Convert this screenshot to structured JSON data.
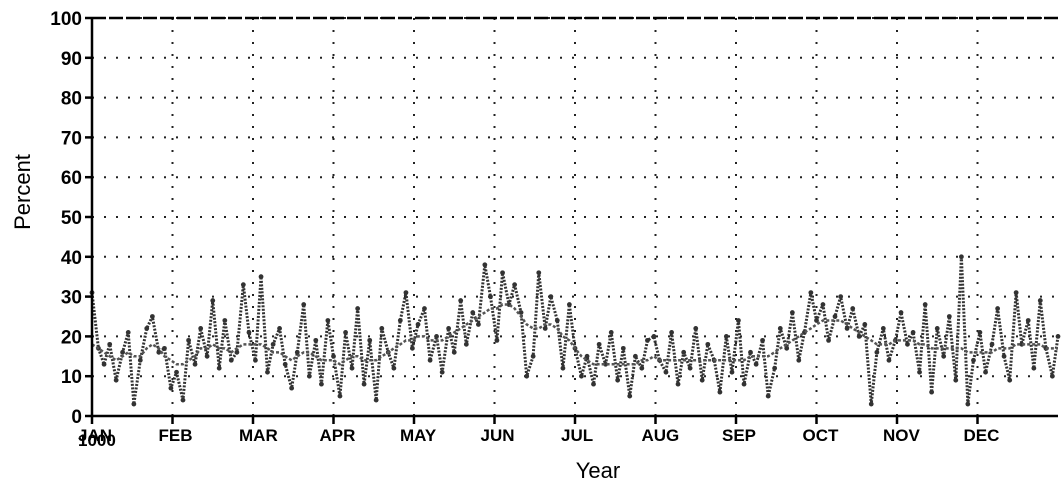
{
  "chart_data": {
    "type": "line",
    "title": "",
    "xlabel": "Year",
    "ylabel": "Percent",
    "ylim": [
      0,
      100
    ],
    "yticks": [
      0,
      10,
      20,
      30,
      40,
      50,
      60,
      70,
      80,
      90,
      100
    ],
    "ytick_labels": [
      "0",
      "10",
      "20",
      "30",
      "40",
      "50",
      "60",
      "70",
      "80",
      "90",
      "100"
    ],
    "xlim": [
      0,
      12
    ],
    "xticks": [
      0,
      1,
      2,
      3,
      4,
      5,
      6,
      7,
      8,
      9,
      10,
      11
    ],
    "xtick_labels": [
      "JAN",
      "FEB",
      "MAR",
      "APR",
      "MAY",
      "JUN",
      "JUL",
      "AUG",
      "SEP",
      "OCT",
      "NOV",
      "DEC"
    ],
    "year_label": "1000",
    "grid": true,
    "grid_style": "dotted",
    "series": [
      {
        "color": "#333333",
        "x": [
          0.0,
          0.08,
          0.15,
          0.22,
          0.3,
          0.38,
          0.45,
          0.52,
          0.6,
          0.68,
          0.75,
          0.83,
          0.9,
          0.98,
          1.05,
          1.13,
          1.2,
          1.28,
          1.35,
          1.43,
          1.5,
          1.58,
          1.65,
          1.73,
          1.8,
          1.88,
          1.95,
          2.03,
          2.1,
          2.18,
          2.25,
          2.33,
          2.4,
          2.48,
          2.55,
          2.63,
          2.7,
          2.78,
          2.85,
          2.93,
          3.0,
          3.08,
          3.15,
          3.23,
          3.3,
          3.38,
          3.45,
          3.53,
          3.6,
          3.68,
          3.75,
          3.83,
          3.9,
          3.98,
          4.05,
          4.13,
          4.2,
          4.28,
          4.35,
          4.43,
          4.5,
          4.58,
          4.65,
          4.73,
          4.8,
          4.88,
          4.95,
          5.03,
          5.1,
          5.18,
          5.25,
          5.33,
          5.4,
          5.48,
          5.55,
          5.63,
          5.7,
          5.78,
          5.85,
          5.93,
          6.0,
          6.08,
          6.15,
          6.23,
          6.3,
          6.38,
          6.45,
          6.53,
          6.6,
          6.68,
          6.75,
          6.83,
          6.9,
          6.98,
          7.05,
          7.13,
          7.2,
          7.28,
          7.35,
          7.43,
          7.5,
          7.58,
          7.65,
          7.73,
          7.8,
          7.88,
          7.95,
          8.03,
          8.1,
          8.18,
          8.25,
          8.33,
          8.4,
          8.48,
          8.55,
          8.63,
          8.7,
          8.78,
          8.85,
          8.93,
          9.0,
          9.08,
          9.15,
          9.23,
          9.3,
          9.38,
          9.45,
          9.53,
          9.6,
          9.68,
          9.75,
          9.83,
          9.9,
          9.98,
          10.05,
          10.13,
          10.2,
          10.28,
          10.35,
          10.43,
          10.5,
          10.58,
          10.65,
          10.73,
          10.8,
          10.88,
          10.95,
          11.03,
          11.1,
          11.18,
          11.25,
          11.33,
          11.4,
          11.48,
          11.55,
          11.63,
          11.7,
          11.78,
          11.85,
          11.93,
          12.0
        ],
        "values": [
          31,
          17,
          13,
          18,
          9,
          16,
          21,
          3,
          14,
          22,
          25,
          16,
          17,
          7,
          11,
          4,
          19,
          13,
          22,
          15,
          29,
          12,
          24,
          14,
          16,
          33,
          21,
          14,
          35,
          11,
          18,
          22,
          13,
          7,
          16,
          28,
          10,
          19,
          8,
          24,
          15,
          5,
          21,
          12,
          27,
          8,
          19,
          4,
          22,
          16,
          12,
          24,
          31,
          17,
          23,
          27,
          14,
          20,
          11,
          22,
          16,
          29,
          18,
          26,
          23,
          38,
          30,
          19,
          36,
          28,
          33,
          26,
          10,
          15,
          36,
          22,
          30,
          24,
          12,
          28,
          17,
          10,
          15,
          8,
          18,
          13,
          21,
          9,
          17,
          5,
          15,
          12,
          19,
          20,
          14,
          11,
          21,
          8,
          16,
          12,
          22,
          9,
          18,
          14,
          6,
          20,
          11,
          24,
          8,
          16,
          13,
          19,
          5,
          12,
          22,
          17,
          26,
          14,
          21,
          31,
          24,
          28,
          19,
          25,
          30,
          22,
          27,
          20,
          23,
          3,
          16,
          22,
          14,
          19,
          26,
          18,
          21,
          11,
          28,
          6,
          22,
          15,
          25,
          9,
          40,
          3,
          14,
          21,
          11,
          18,
          27,
          15,
          9,
          31,
          18,
          24,
          12,
          29,
          17,
          10,
          20
        ],
        "smoothed": [
          18,
          17,
          16,
          15,
          14,
          15,
          16,
          15,
          15,
          17,
          18,
          17,
          15,
          14,
          13,
          13,
          14,
          15,
          17,
          17,
          18,
          17,
          17,
          16,
          17,
          18,
          18,
          18,
          18,
          17,
          16,
          16,
          15,
          14,
          15,
          16,
          16,
          15,
          14,
          14,
          14,
          13,
          14,
          15,
          15,
          14,
          14,
          14,
          15,
          16,
          17,
          18,
          19,
          19,
          20,
          20,
          19,
          19,
          19,
          20,
          21,
          22,
          23,
          24,
          25,
          26,
          27,
          27,
          28,
          28,
          27,
          25,
          23,
          22,
          22,
          23,
          23,
          22,
          20,
          19,
          17,
          15,
          14,
          13,
          13,
          13,
          13,
          13,
          13,
          13,
          13,
          14,
          14,
          15,
          14,
          14,
          14,
          14,
          14,
          14,
          14,
          14,
          14,
          14,
          14,
          14,
          14,
          14,
          14,
          15,
          15,
          15,
          15,
          16,
          17,
          18,
          19,
          20,
          21,
          22,
          23,
          24,
          24,
          24,
          24,
          23,
          22,
          21,
          20,
          19,
          18,
          18,
          18,
          19,
          19,
          19,
          19,
          18,
          18,
          17,
          17,
          17,
          17,
          17,
          17,
          16,
          16,
          16,
          16,
          16,
          17,
          17,
          17,
          18,
          18,
          18,
          18,
          18,
          17,
          17,
          17
        ]
      }
    ]
  }
}
